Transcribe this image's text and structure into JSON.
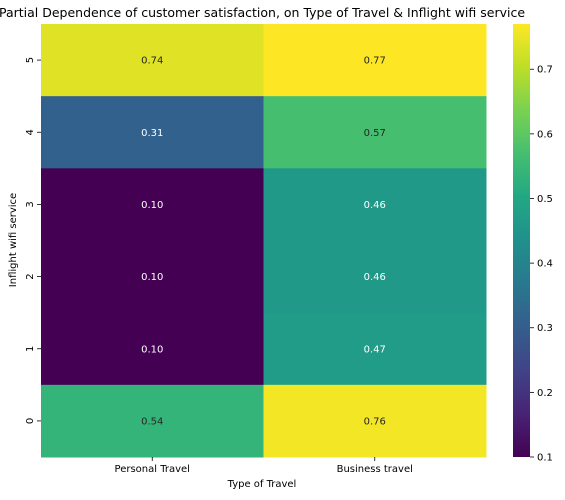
{
  "chart_data": {
    "type": "heatmap",
    "title": "Partial Dependence of customer satisfaction, on Type of Travel & Inflight wifi service",
    "xlabel": "Type of Travel",
    "ylabel": "Inflight wifi service",
    "x_categories": [
      "Personal Travel",
      "Business travel"
    ],
    "y_categories": [
      "5",
      "4",
      "3",
      "2",
      "1",
      "0"
    ],
    "values": [
      [
        0.74,
        0.77
      ],
      [
        0.31,
        0.57
      ],
      [
        0.1,
        0.46
      ],
      [
        0.1,
        0.46
      ],
      [
        0.1,
        0.47
      ],
      [
        0.54,
        0.76
      ]
    ],
    "value_labels": [
      [
        "0.74",
        "0.77"
      ],
      [
        "0.31",
        "0.57"
      ],
      [
        "0.10",
        "0.46"
      ],
      [
        "0.10",
        "0.46"
      ],
      [
        "0.10",
        "0.47"
      ],
      [
        "0.54",
        "0.76"
      ]
    ],
    "colormap": "viridis",
    "colorbar": {
      "range": [
        0.1,
        0.77
      ],
      "ticks": [
        0.1,
        0.2,
        0.3,
        0.4,
        0.5,
        0.6,
        0.7
      ],
      "tick_labels": [
        "0.1",
        "0.2",
        "0.3",
        "0.4",
        "0.5",
        "0.6",
        "0.7"
      ]
    },
    "grid": false,
    "legend": "colorbar-right"
  }
}
